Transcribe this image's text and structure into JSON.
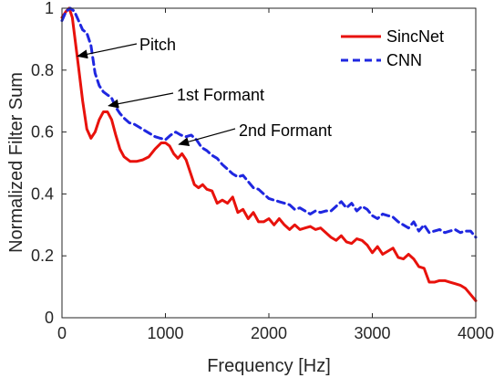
{
  "chart_data": {
    "type": "line",
    "xlabel": "Frequency [Hz]",
    "ylabel": "Normalized Filter Sum",
    "xlim": [
      0,
      4000
    ],
    "ylim": [
      0,
      1
    ],
    "xticks": [
      0,
      1000,
      2000,
      3000,
      4000
    ],
    "yticks": [
      0,
      0.2,
      0.4,
      0.6,
      0.8,
      1
    ],
    "xtick_labels": [
      "0",
      "1000",
      "2000",
      "3000",
      "4000"
    ],
    "ytick_labels": [
      "0",
      "0.2",
      "0.4",
      "0.6",
      "0.8",
      "1"
    ],
    "grid": false,
    "legend_position": "top-right",
    "series": [
      {
        "name": "SincNet",
        "color": "#e8120c",
        "style": "solid",
        "x": [
          0,
          40,
          70,
          100,
          130,
          160,
          200,
          240,
          280,
          320,
          360,
          400,
          440,
          480,
          520,
          560,
          600,
          660,
          720,
          780,
          840,
          900,
          960,
          1000,
          1040,
          1080,
          1120,
          1160,
          1200,
          1240,
          1280,
          1320,
          1360,
          1400,
          1450,
          1500,
          1550,
          1600,
          1650,
          1700,
          1750,
          1800,
          1850,
          1900,
          1950,
          2000,
          2050,
          2100,
          2150,
          2200,
          2250,
          2300,
          2350,
          2400,
          2450,
          2500,
          2550,
          2600,
          2650,
          2700,
          2750,
          2800,
          2850,
          2900,
          2950,
          3000,
          3050,
          3100,
          3150,
          3200,
          3250,
          3300,
          3350,
          3400,
          3450,
          3500,
          3550,
          3600,
          3650,
          3700,
          3750,
          3800,
          3850,
          3900,
          3950,
          4000
        ],
        "y": [
          0.97,
          0.99,
          1.0,
          0.97,
          0.89,
          0.81,
          0.7,
          0.61,
          0.58,
          0.6,
          0.64,
          0.665,
          0.665,
          0.64,
          0.59,
          0.545,
          0.52,
          0.505,
          0.505,
          0.51,
          0.52,
          0.545,
          0.565,
          0.565,
          0.555,
          0.53,
          0.515,
          0.53,
          0.51,
          0.47,
          0.43,
          0.42,
          0.43,
          0.415,
          0.41,
          0.37,
          0.38,
          0.37,
          0.39,
          0.34,
          0.35,
          0.32,
          0.34,
          0.31,
          0.31,
          0.32,
          0.3,
          0.32,
          0.3,
          0.285,
          0.3,
          0.285,
          0.29,
          0.295,
          0.285,
          0.29,
          0.275,
          0.26,
          0.25,
          0.265,
          0.245,
          0.24,
          0.255,
          0.25,
          0.235,
          0.21,
          0.23,
          0.205,
          0.215,
          0.225,
          0.195,
          0.19,
          0.205,
          0.19,
          0.165,
          0.16,
          0.115,
          0.115,
          0.12,
          0.12,
          0.115,
          0.11,
          0.105,
          0.095,
          0.075,
          0.055
        ]
      },
      {
        "name": "CNN",
        "color": "#1f27e0",
        "style": "dashed",
        "x": [
          0,
          40,
          80,
          120,
          160,
          200,
          240,
          280,
          320,
          360,
          400,
          440,
          480,
          520,
          560,
          600,
          650,
          700,
          750,
          800,
          850,
          900,
          950,
          1000,
          1050,
          1100,
          1150,
          1200,
          1250,
          1300,
          1350,
          1400,
          1450,
          1500,
          1550,
          1600,
          1650,
          1700,
          1750,
          1800,
          1850,
          1900,
          1950,
          2000,
          2050,
          2100,
          2150,
          2200,
          2250,
          2300,
          2350,
          2400,
          2450,
          2500,
          2550,
          2600,
          2650,
          2700,
          2750,
          2800,
          2850,
          2900,
          2950,
          3000,
          3050,
          3100,
          3150,
          3200,
          3250,
          3300,
          3350,
          3400,
          3450,
          3500,
          3550,
          3600,
          3650,
          3700,
          3750,
          3800,
          3850,
          3900,
          3950,
          4000
        ],
        "y": [
          0.96,
          0.99,
          1.0,
          0.99,
          0.96,
          0.93,
          0.92,
          0.88,
          0.79,
          0.75,
          0.73,
          0.72,
          0.71,
          0.68,
          0.66,
          0.645,
          0.63,
          0.625,
          0.615,
          0.605,
          0.595,
          0.585,
          0.58,
          0.575,
          0.59,
          0.6,
          0.59,
          0.585,
          0.59,
          0.575,
          0.55,
          0.54,
          0.525,
          0.515,
          0.495,
          0.48,
          0.465,
          0.455,
          0.46,
          0.44,
          0.42,
          0.415,
          0.4,
          0.385,
          0.38,
          0.375,
          0.37,
          0.365,
          0.35,
          0.355,
          0.345,
          0.335,
          0.345,
          0.34,
          0.345,
          0.345,
          0.36,
          0.375,
          0.355,
          0.37,
          0.345,
          0.36,
          0.35,
          0.33,
          0.32,
          0.335,
          0.33,
          0.325,
          0.31,
          0.3,
          0.29,
          0.31,
          0.28,
          0.3,
          0.275,
          0.28,
          0.285,
          0.275,
          0.28,
          0.285,
          0.275,
          0.28,
          0.28,
          0.26
        ]
      }
    ],
    "annotations": [
      {
        "text": "Pitch",
        "target": [
          150,
          0.845
        ]
      },
      {
        "text": "1st Formant",
        "target": [
          450,
          0.685
        ]
      },
      {
        "text": "2nd Formant",
        "target": [
          1130,
          0.56
        ]
      }
    ]
  }
}
